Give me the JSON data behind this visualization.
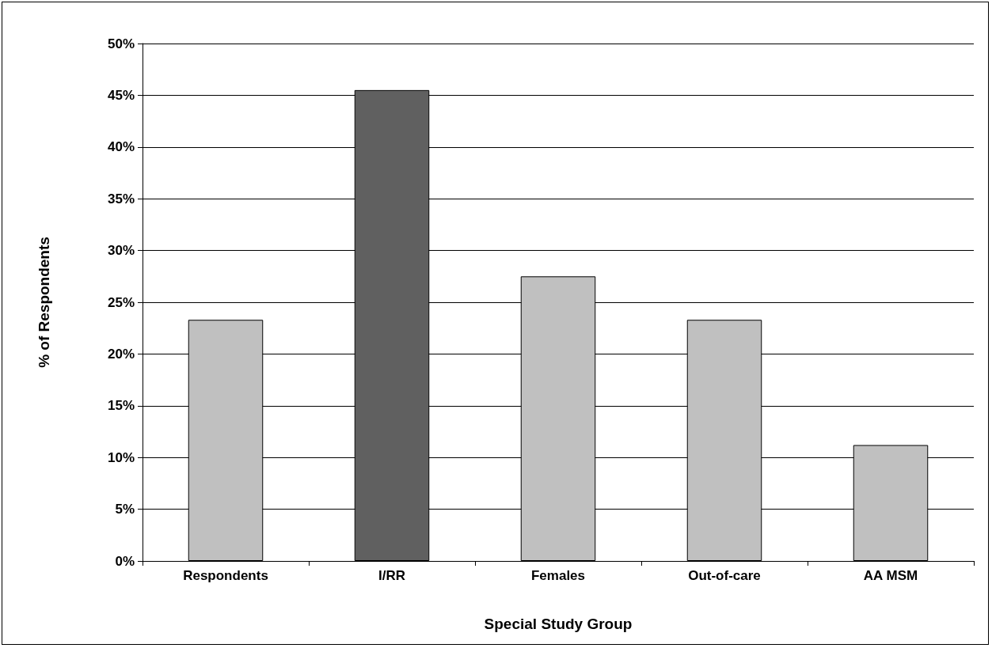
{
  "chart_data": {
    "type": "bar",
    "xlabel": "Special Study Group",
    "ylabel": "% of Respondents",
    "categories": [
      "Respondents",
      "I/RR",
      "Females",
      "Out-of-care",
      "AA MSM"
    ],
    "values": [
      23.3,
      45.5,
      27.5,
      23.3,
      11.2
    ],
    "colors": [
      "#c0c0c0",
      "#606060",
      "#c0c0c0",
      "#c0c0c0",
      "#c0c0c0"
    ],
    "ylim": [
      0,
      50
    ],
    "yticks": [
      {
        "value": 0,
        "label": "0%"
      },
      {
        "value": 5,
        "label": "5%"
      },
      {
        "value": 10,
        "label": "10%"
      },
      {
        "value": 15,
        "label": "15%"
      },
      {
        "value": 20,
        "label": "20%"
      },
      {
        "value": 25,
        "label": "25%"
      },
      {
        "value": 30,
        "label": "30%"
      },
      {
        "value": 35,
        "label": "35%"
      },
      {
        "value": 40,
        "label": "40%"
      },
      {
        "value": 45,
        "label": "45%"
      },
      {
        "value": 50,
        "label": "50%"
      }
    ],
    "grid": "y"
  }
}
